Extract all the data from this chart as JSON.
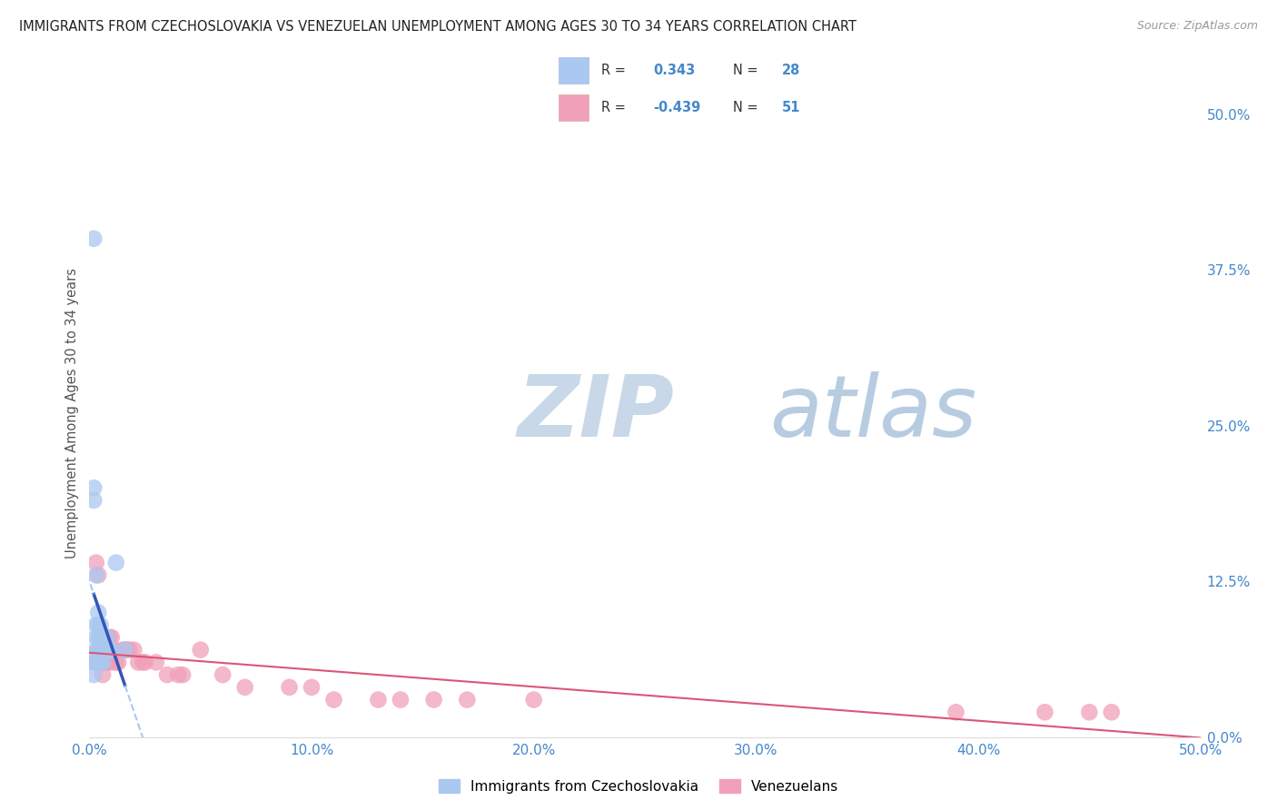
{
  "title": "IMMIGRANTS FROM CZECHOSLOVAKIA VS VENEZUELAN UNEMPLOYMENT AMONG AGES 30 TO 34 YEARS CORRELATION CHART",
  "source": "Source: ZipAtlas.com",
  "ylabel": "Unemployment Among Ages 30 to 34 years",
  "xlim": [
    0.0,
    0.5
  ],
  "ylim": [
    0.0,
    0.52
  ],
  "ytick_vals": [
    0.0,
    0.125,
    0.25,
    0.375,
    0.5
  ],
  "ytick_labels": [
    "0.0%",
    "12.5%",
    "25.0%",
    "37.5%",
    "50.0%"
  ],
  "xtick_vals": [
    0.0,
    0.1,
    0.2,
    0.3,
    0.4,
    0.5
  ],
  "xtick_labels": [
    "0.0%",
    "10.0%",
    "20.0%",
    "30.0%",
    "40.0%",
    "50.0%"
  ],
  "blue_color": "#aac8f0",
  "pink_color": "#f0a0b8",
  "blue_line_color": "#3355bb",
  "pink_line_color": "#dd5577",
  "blue_scatter_x": [
    0.002,
    0.002,
    0.002,
    0.003,
    0.003,
    0.003,
    0.003,
    0.003,
    0.004,
    0.004,
    0.004,
    0.004,
    0.004,
    0.005,
    0.005,
    0.005,
    0.005,
    0.006,
    0.006,
    0.006,
    0.007,
    0.008,
    0.009,
    0.01,
    0.012,
    0.016,
    0.002,
    0.003
  ],
  "blue_scatter_y": [
    0.4,
    0.2,
    0.19,
    0.13,
    0.09,
    0.08,
    0.07,
    0.06,
    0.1,
    0.09,
    0.08,
    0.07,
    0.06,
    0.09,
    0.08,
    0.07,
    0.06,
    0.08,
    0.07,
    0.06,
    0.07,
    0.08,
    0.07,
    0.07,
    0.14,
    0.07,
    0.05,
    0.06
  ],
  "pink_scatter_x": [
    0.002,
    0.003,
    0.003,
    0.004,
    0.004,
    0.005,
    0.005,
    0.005,
    0.006,
    0.006,
    0.006,
    0.007,
    0.007,
    0.008,
    0.008,
    0.008,
    0.009,
    0.009,
    0.01,
    0.01,
    0.01,
    0.011,
    0.012,
    0.013,
    0.015,
    0.016,
    0.017,
    0.018,
    0.02,
    0.022,
    0.024,
    0.025,
    0.03,
    0.035,
    0.04,
    0.042,
    0.05,
    0.06,
    0.07,
    0.09,
    0.1,
    0.11,
    0.13,
    0.14,
    0.155,
    0.17,
    0.2,
    0.39,
    0.43,
    0.45,
    0.46
  ],
  "pink_scatter_y": [
    0.06,
    0.14,
    0.06,
    0.13,
    0.07,
    0.08,
    0.07,
    0.06,
    0.07,
    0.06,
    0.05,
    0.07,
    0.06,
    0.08,
    0.07,
    0.06,
    0.08,
    0.07,
    0.08,
    0.07,
    0.06,
    0.07,
    0.06,
    0.06,
    0.07,
    0.07,
    0.07,
    0.07,
    0.07,
    0.06,
    0.06,
    0.06,
    0.06,
    0.05,
    0.05,
    0.05,
    0.07,
    0.05,
    0.04,
    0.04,
    0.04,
    0.03,
    0.03,
    0.03,
    0.03,
    0.03,
    0.03,
    0.02,
    0.02,
    0.02,
    0.02
  ],
  "background_color": "#ffffff",
  "grid_color": "#cccccc",
  "title_color": "#222222",
  "axis_label_color": "#4488cc",
  "watermark_zip_color": "#c8d8e8",
  "watermark_atlas_color": "#88aacc"
}
